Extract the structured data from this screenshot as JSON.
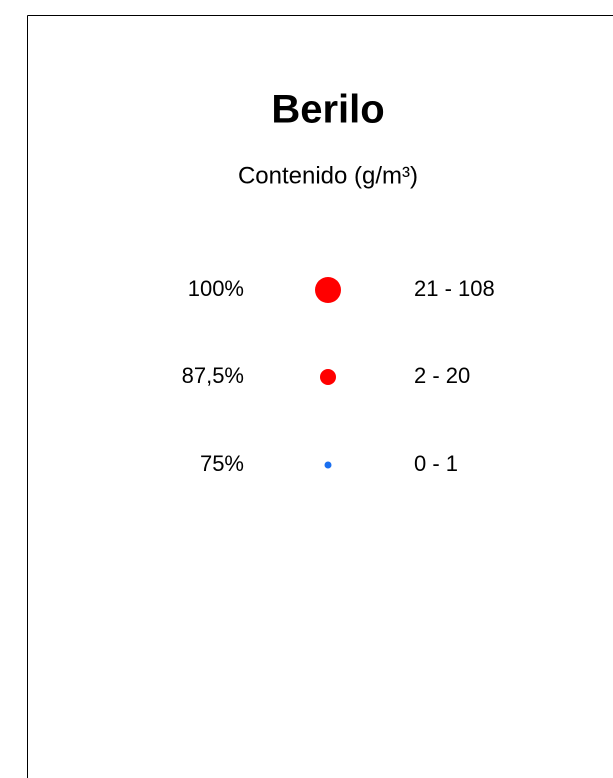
{
  "legend": {
    "title": "Berilo",
    "subtitle": "Contenido (g/m³)",
    "items": [
      {
        "percent": "100%",
        "range": "21 - 108",
        "color": "#ff0000"
      },
      {
        "percent": "87,5%",
        "range": "2 - 20",
        "color": "#ff0000"
      },
      {
        "percent": "75%",
        "range": "0 - 1",
        "color": "#1a6ff0"
      }
    ]
  }
}
